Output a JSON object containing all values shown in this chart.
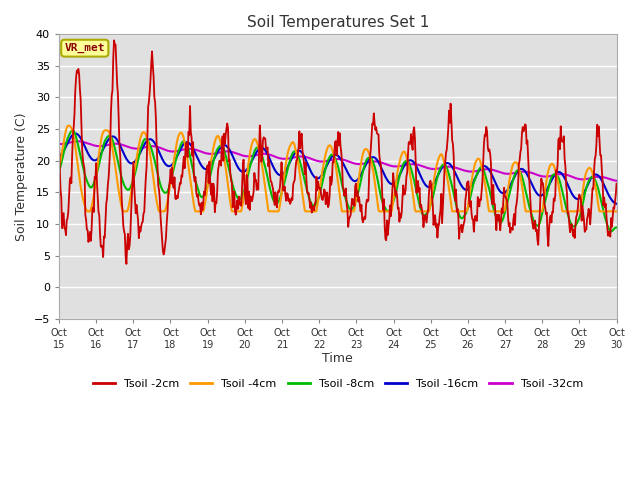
{
  "title": "Soil Temperatures Set 1",
  "xlabel": "Time",
  "ylabel": "Soil Temperature (C)",
  "ylim": [
    -5,
    40
  ],
  "annotation": "VR_met",
  "background_color": "#ffffff",
  "plot_bg_color": "#e0e0e0",
  "grid_color": "#ffffff",
  "yticks": [
    -5,
    0,
    5,
    10,
    15,
    20,
    25,
    30,
    35,
    40
  ],
  "x_tick_labels": [
    "Oct 15",
    "Oct 16",
    "Oct 17",
    "Oct 18",
    "Oct 19",
    "Oct 20",
    "Oct 21",
    "Oct 22",
    "Oct 23",
    "Oct 24",
    "Oct 25",
    "Oct 26",
    "Oct 27",
    "Oct 28",
    "Oct 29",
    "Oct 30"
  ],
  "series": {
    "Tsoil -2cm": {
      "color": "#cc0000"
    },
    "Tsoil -4cm": {
      "color": "#ff9900"
    },
    "Tsoil -8cm": {
      "color": "#00bb00"
    },
    "Tsoil -16cm": {
      "color": "#0000cc"
    },
    "Tsoil -32cm": {
      "color": "#cc00cc"
    }
  }
}
